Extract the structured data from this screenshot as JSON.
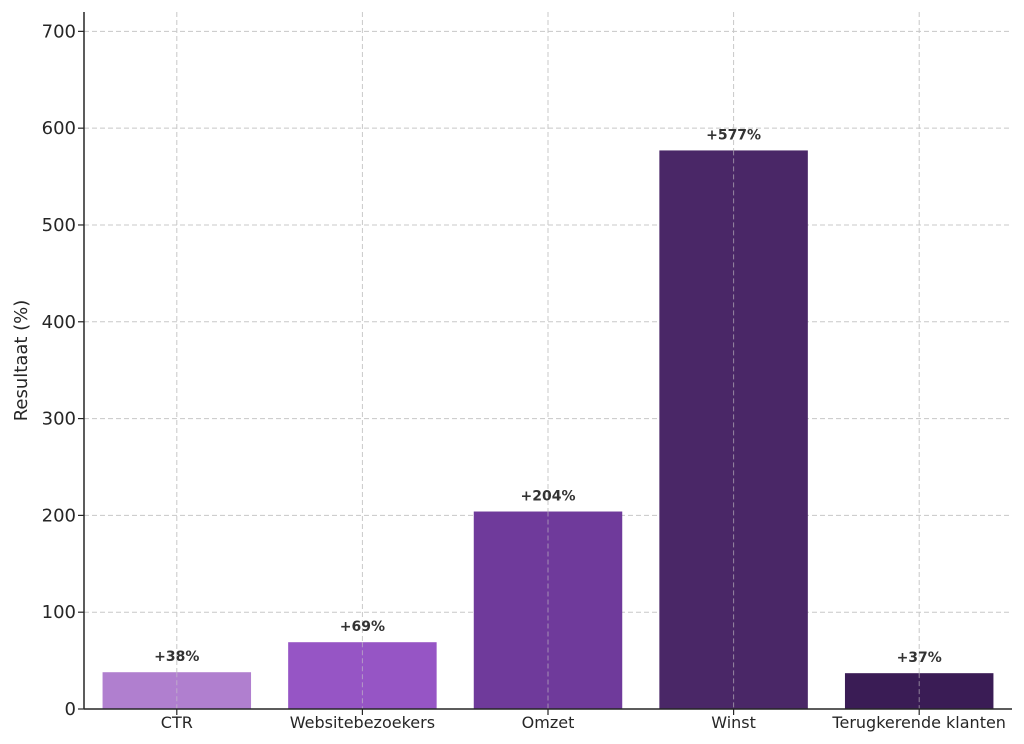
{
  "chart_data": {
    "type": "bar",
    "categories": [
      "CTR",
      "Websitebezoekers",
      "Omzet",
      "Winst",
      "Terugkerende klanten"
    ],
    "values": [
      38,
      69,
      204,
      577,
      37
    ],
    "data_labels": [
      "+38%",
      "+69%",
      "+204%",
      "+577%",
      "+37%"
    ],
    "colors": [
      "#b07fcf",
      "#9655c5",
      "#6f3a9b",
      "#4a2767",
      "#3a1c55"
    ],
    "title": "",
    "xlabel": "",
    "ylabel": "Resultaat (%)",
    "ylim": [
      0,
      720
    ],
    "yticks": [
      0,
      100,
      200,
      300,
      400,
      500,
      600,
      700
    ],
    "grid": true,
    "legend": "none"
  }
}
